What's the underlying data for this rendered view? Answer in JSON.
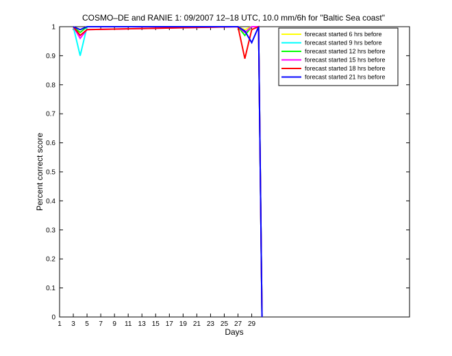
{
  "chart_data": {
    "type": "line",
    "title": "COSMO–DE and RANIE 1: 09/2007 12–18 UTC, 10.0 mm/6h for \"Baltic Sea coast\"",
    "xlabel": "Days",
    "ylabel": "Percent correct score",
    "xlim": [
      1,
      52
    ],
    "ylim": [
      0,
      1
    ],
    "xticks": [
      1,
      3,
      5,
      7,
      9,
      11,
      13,
      15,
      17,
      19,
      21,
      23,
      25,
      27,
      29
    ],
    "yticks": [
      0,
      0.1,
      0.2,
      0.3,
      0.4,
      0.5,
      0.6,
      0.7,
      0.8,
      0.9,
      1
    ],
    "ytick_labels": [
      "0",
      "0.1",
      "0.2",
      "0.3",
      "0.4",
      "0.5",
      "0.6",
      "0.7",
      "0.8",
      "0.9",
      "1"
    ],
    "grid": false,
    "legend_position": "top-right",
    "series": [
      {
        "name": "forecast started 6 hrs before",
        "color": "#ffff00",
        "x": [
          3,
          4,
          5,
          27,
          28,
          29,
          30,
          30.5
        ],
        "y": [
          1,
          0.99,
          1,
          1,
          0.99,
          1,
          1,
          0
        ]
      },
      {
        "name": "forecast started 9 hrs before",
        "color": "#00ffff",
        "x": [
          3,
          4,
          5,
          27,
          28,
          29,
          30,
          30.5
        ],
        "y": [
          1,
          0.9,
          1,
          1,
          0.98,
          1,
          1,
          0
        ]
      },
      {
        "name": "forecast started 12 hrs before",
        "color": "#00ff00",
        "x": [
          3,
          4,
          5,
          27,
          28,
          29,
          30,
          30.5
        ],
        "y": [
          1,
          0.98,
          1,
          1,
          0.97,
          1,
          1,
          0
        ]
      },
      {
        "name": "forecast started 15 hrs before",
        "color": "#ff00ff",
        "x": [
          3,
          4,
          5,
          27,
          28,
          29,
          30,
          30.5
        ],
        "y": [
          1,
          0.96,
          0.99,
          1,
          0.98,
          1,
          1,
          0
        ]
      },
      {
        "name": "forecast started 18 hrs before",
        "color": "#ff0000",
        "x": [
          3,
          4,
          5,
          27,
          28,
          29,
          30,
          30.5
        ],
        "y": [
          1,
          0.97,
          0.99,
          1,
          0.89,
          0.99,
          1,
          0
        ]
      },
      {
        "name": "forecast started 21 hrs before",
        "color": "#0000ff",
        "x": [
          3,
          4,
          5,
          27,
          28,
          29,
          30,
          30.5
        ],
        "y": [
          1,
          0.99,
          1,
          1,
          0.985,
          0.945,
          1,
          0
        ]
      }
    ]
  }
}
